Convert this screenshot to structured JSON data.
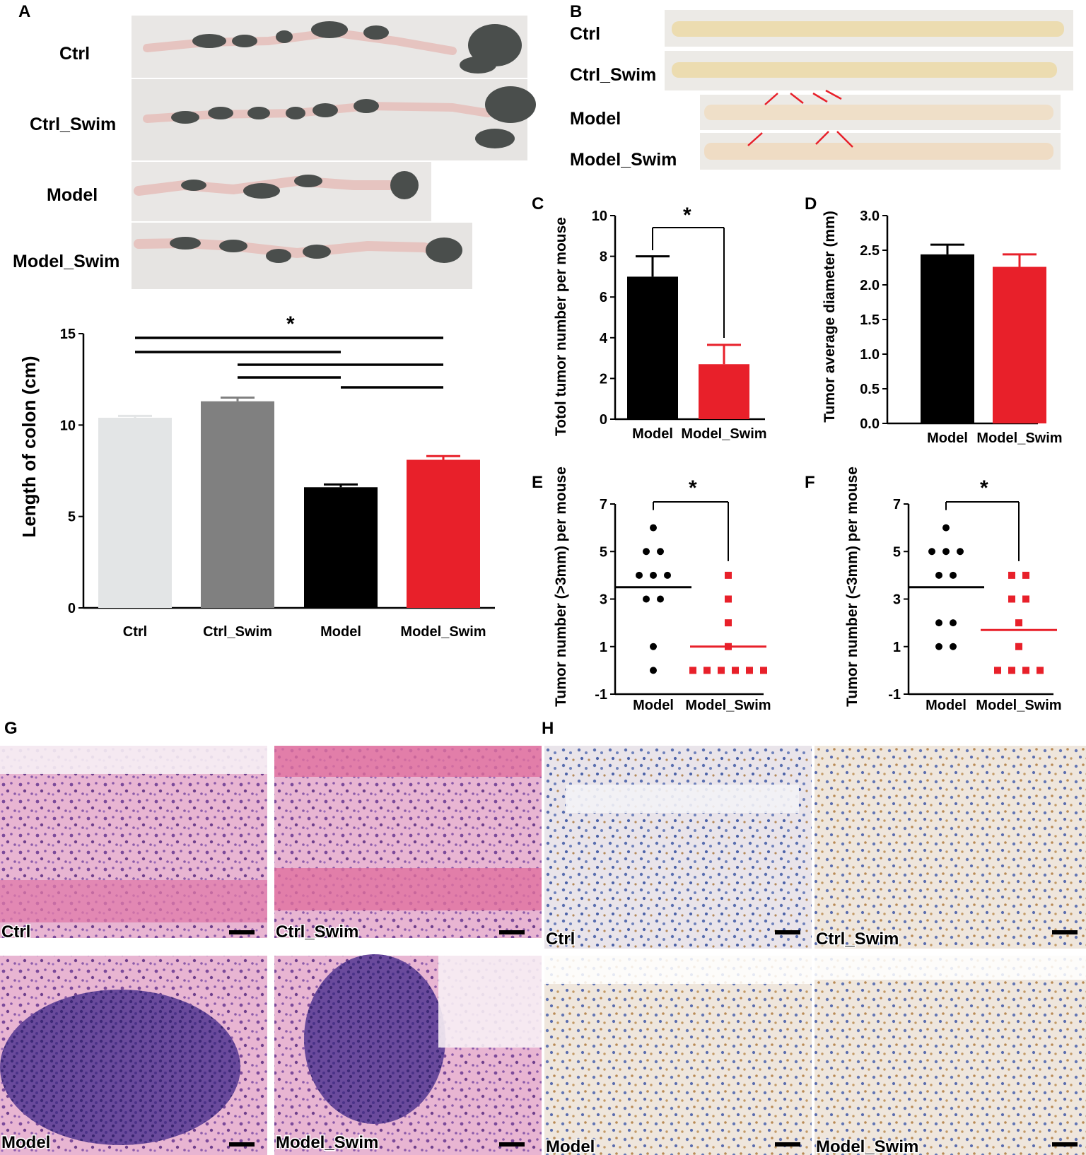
{
  "panel_letters": [
    "A",
    "B",
    "C",
    "D",
    "E",
    "F",
    "G",
    "H"
  ],
  "photo_labels_A": [
    "Ctrl",
    "Ctrl_Swim",
    "Model",
    "Model_Swim"
  ],
  "photo_labels_B": [
    "Ctrl",
    "Ctrl_Swim",
    "Model",
    "Model_Swim"
  ],
  "histo_labels_G": [
    "Ctrl",
    "Ctrl_Swim",
    "Model",
    "Model_Swim"
  ],
  "histo_labels_H": [
    "Ctrl",
    "Ctrl_Swim",
    "Model",
    "Model_Swim"
  ],
  "colors": {
    "ctrl": "#e3e5e6",
    "ctrl_swim": "#808080",
    "model": "#000000",
    "model_swim": "#e8202a",
    "he_pink": "#e6a5c8",
    "he_purple": "#7a4a9a",
    "ihc_blue": "#9fb0d6",
    "ihc_brown": "#b98a52",
    "colon_dark": "#4a4e4c",
    "colon_pink": "#e6c4c0",
    "colon_cream": "#ecdcb0"
  },
  "chart_data": [
    {
      "id": "A",
      "type": "bar",
      "categories": [
        "Ctrl",
        "Ctrl_Swim",
        "Model",
        "Model_Swim"
      ],
      "values": [
        10.4,
        11.3,
        6.6,
        8.1
      ],
      "errors": [
        0.1,
        0.2,
        0.15,
        0.2
      ],
      "ylabel": "Length of colon (cm)",
      "ylim": [
        0,
        15
      ],
      "yticks": [
        "0",
        "5",
        "10",
        "15"
      ],
      "significance": "*",
      "grid": false
    },
    {
      "id": "C",
      "type": "bar",
      "categories": [
        "Model",
        "Model_Swim"
      ],
      "values": [
        7.0,
        2.7
      ],
      "errors": [
        1.0,
        0.95
      ],
      "ylabel": "Totol tumor number per mouse",
      "ylim": [
        0,
        10
      ],
      "yticks": [
        "0",
        "2",
        "4",
        "6",
        "8",
        "10"
      ],
      "significance": "*",
      "grid": false
    },
    {
      "id": "D",
      "type": "bar",
      "categories": [
        "Model",
        "Model_Swim"
      ],
      "values": [
        2.44,
        2.26
      ],
      "errors": [
        0.14,
        0.18
      ],
      "ylabel": "Tumor average diameter (mm)",
      "ylim": [
        0,
        3.0
      ],
      "yticks": [
        "0.0",
        "0.5",
        "1.0",
        "1.5",
        "2.0",
        "2.5",
        "3.0"
      ],
      "grid": false
    },
    {
      "id": "E",
      "type": "scatter",
      "categories": [
        "Model",
        "Model_Swim"
      ],
      "series": [
        {
          "values": [
            6,
            5,
            5,
            4,
            4,
            4,
            3,
            3,
            1,
            0
          ],
          "mean": 3.5
        },
        {
          "values": [
            4,
            3,
            2,
            1,
            0,
            0,
            0,
            0,
            0,
            0
          ],
          "mean": 1.0
        }
      ],
      "ylabel": "Tumor number (>3mm) per mouse",
      "ylim": [
        -1,
        7
      ],
      "yticks": [
        "-1",
        "1",
        "3",
        "5",
        "7"
      ],
      "significance": "*",
      "grid": false
    },
    {
      "id": "F",
      "type": "scatter",
      "categories": [
        "Model",
        "Model_Swim"
      ],
      "series": [
        {
          "values": [
            6,
            5,
            5,
            5,
            4,
            4,
            2,
            2,
            1,
            1
          ],
          "mean": 3.5
        },
        {
          "values": [
            4,
            4,
            3,
            3,
            2,
            1,
            0,
            0,
            0,
            0
          ],
          "mean": 1.7
        }
      ],
      "ylabel": "Tumor number (<3mm) per mouse",
      "ylim": [
        -1,
        7
      ],
      "yticks": [
        "-1",
        "1",
        "3",
        "5",
        "7"
      ],
      "significance": "*",
      "grid": false
    }
  ]
}
